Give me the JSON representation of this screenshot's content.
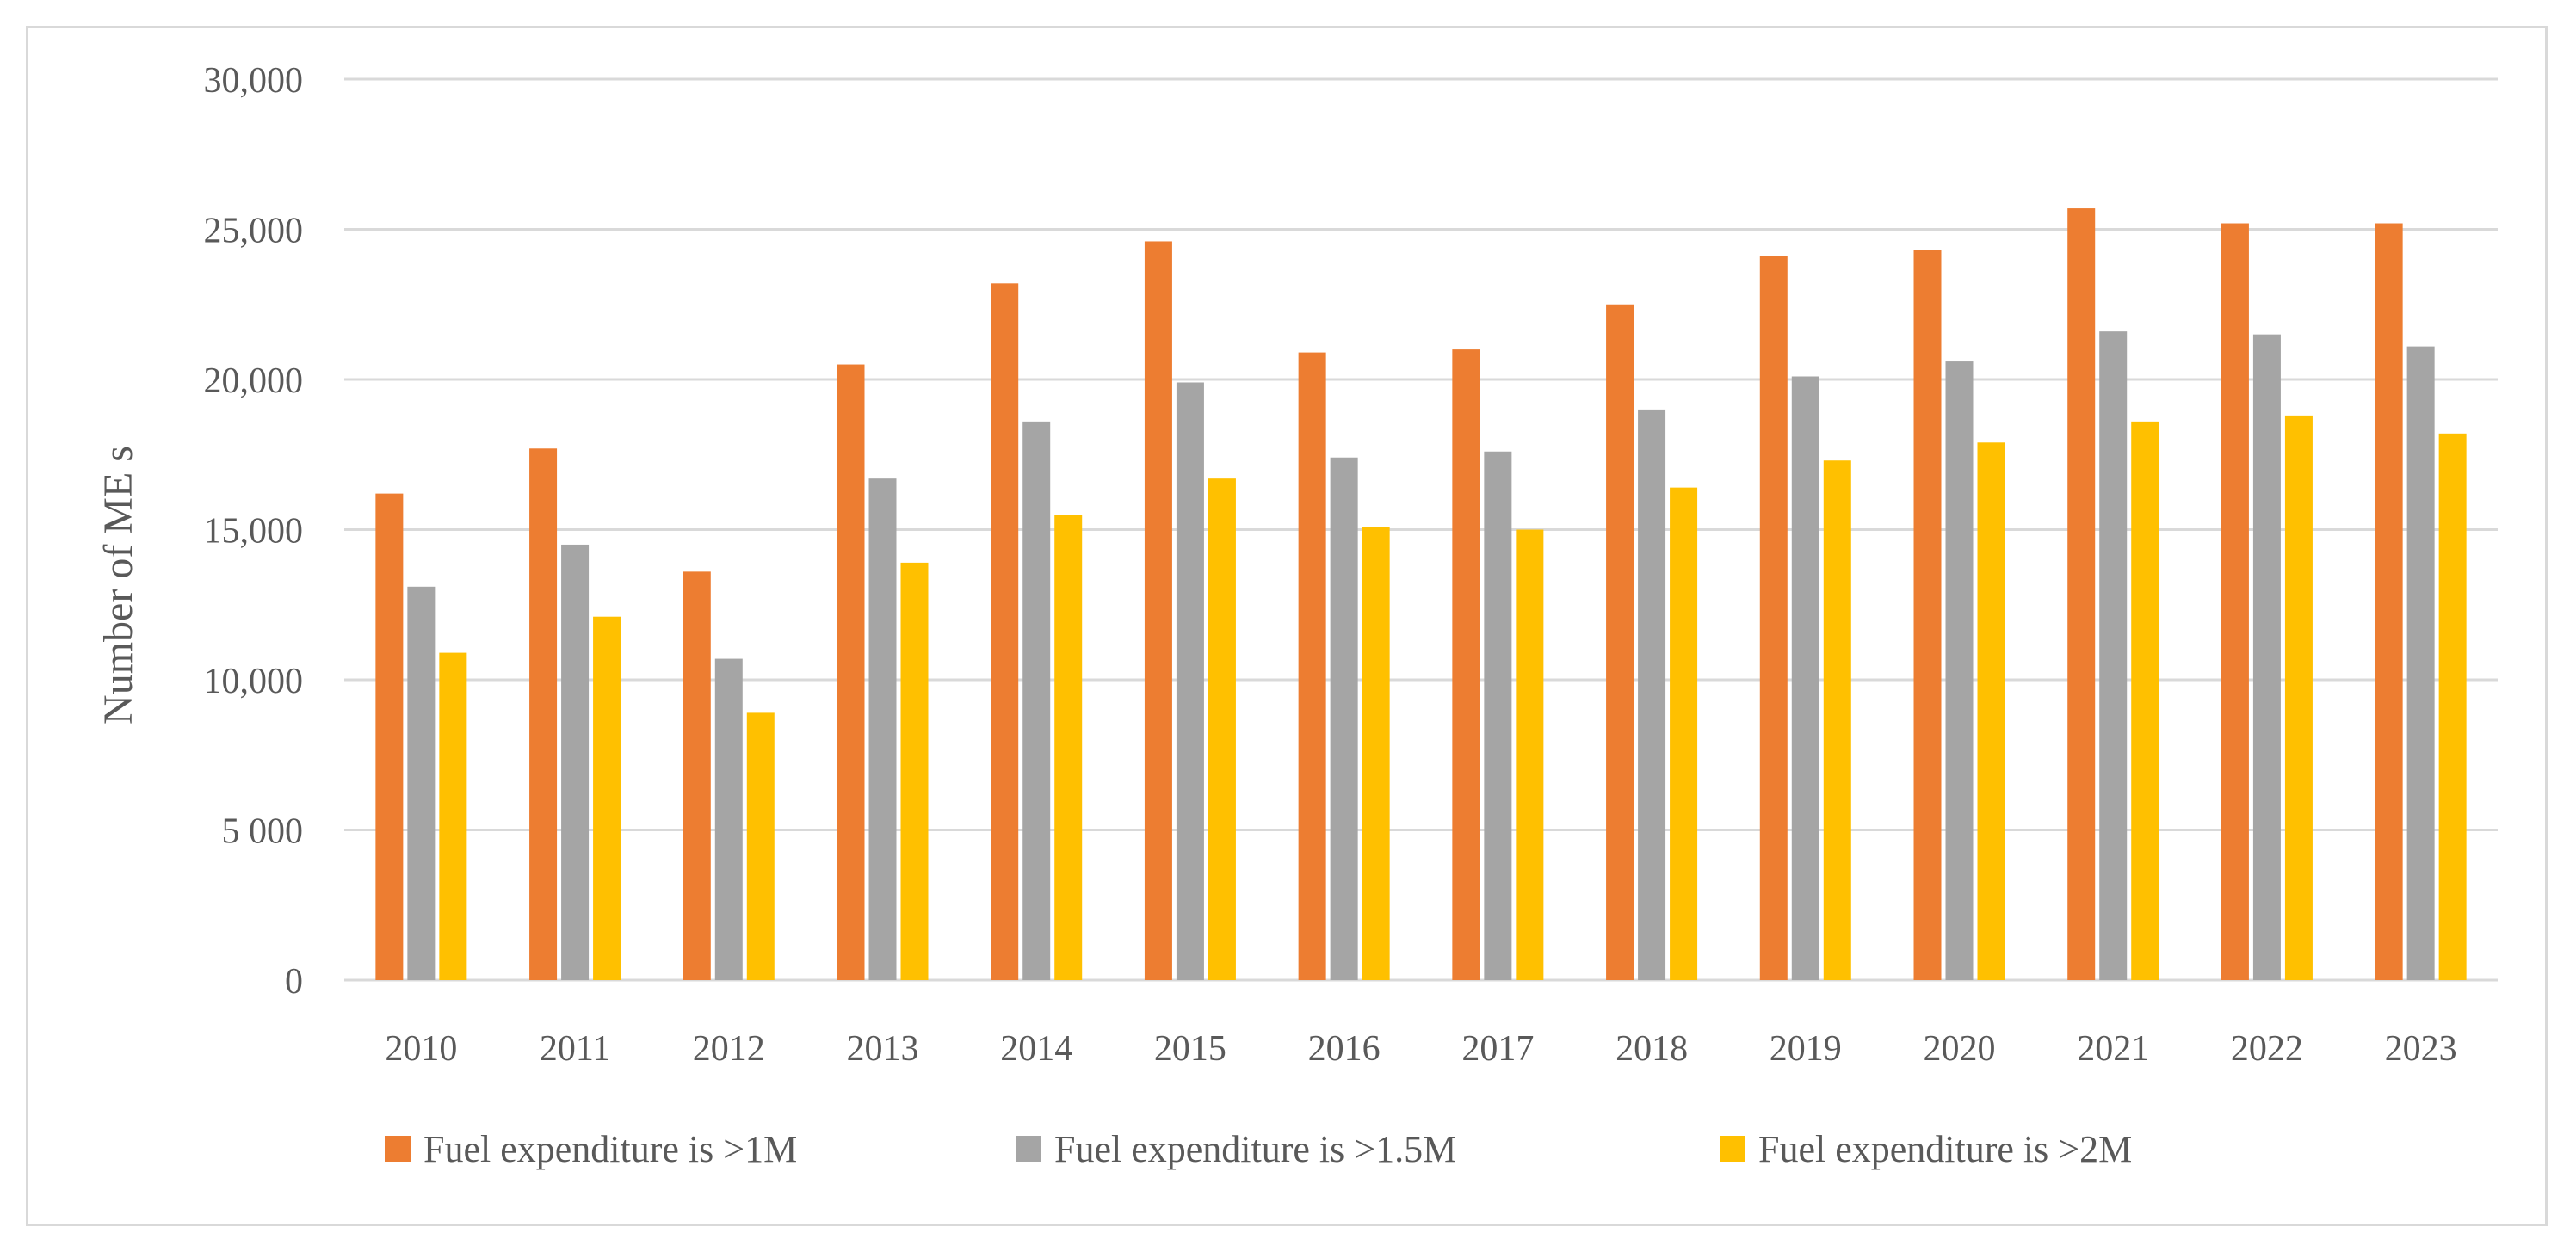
{
  "chart_data": {
    "type": "bar",
    "title": "",
    "xlabel": "",
    "ylabel": "Number of ME s",
    "ylim": [
      0,
      30000
    ],
    "yticks": [
      0,
      5000,
      10000,
      15000,
      20000,
      25000,
      30000
    ],
    "ytick_labels": [
      "0",
      "5 000",
      "10,000",
      "15,000",
      "20,000",
      "25,000",
      "30,000"
    ],
    "categories": [
      "2010",
      "2011",
      "2012",
      "2013",
      "2014",
      "2015",
      "2016",
      "2017",
      "2018",
      "2019",
      "2020",
      "2021",
      "2022",
      "2023"
    ],
    "series": [
      {
        "name": "Fuel expenditure is >1M",
        "color": "#ed7d31",
        "values": [
          16200,
          17700,
          13600,
          20500,
          23200,
          24600,
          20900,
          21000,
          22500,
          24100,
          24300,
          25700,
          25200,
          25200
        ]
      },
      {
        "name": "Fuel expenditure is >1.5M",
        "color": "#a5a5a5",
        "values": [
          13100,
          14500,
          10700,
          16700,
          18600,
          19900,
          17400,
          17600,
          19000,
          20100,
          20600,
          21600,
          21500,
          21100
        ]
      },
      {
        "name": "Fuel expenditure is >2M",
        "color": "#ffc000",
        "values": [
          10900,
          12100,
          8900,
          13900,
          15500,
          16700,
          15100,
          15000,
          16400,
          17300,
          17900,
          18600,
          18800,
          18200
        ]
      }
    ],
    "grid": true,
    "legend_position": "bottom"
  }
}
